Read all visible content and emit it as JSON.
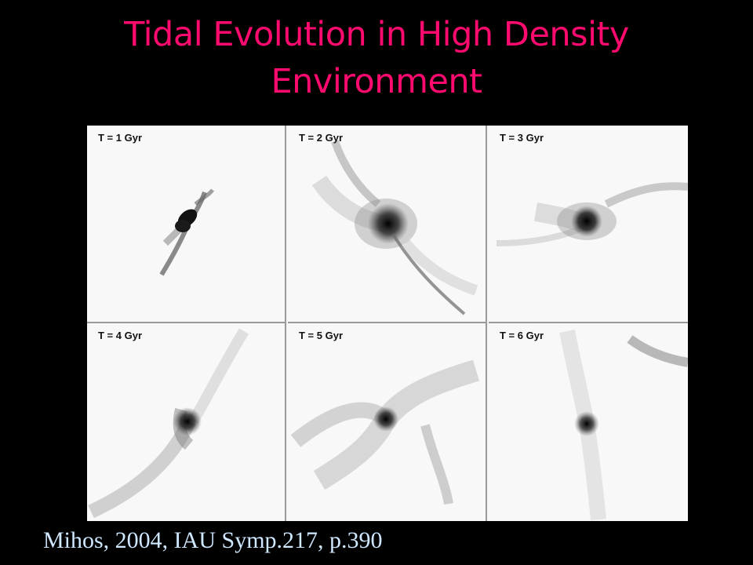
{
  "slide": {
    "title_line1": "Tidal Evolution in High Density",
    "title_line2": "Environment",
    "citation": "Mihos, 2004, IAU Symp.217, p.390",
    "title_color": "#ff0a6e",
    "citation_color": "#cfe7ff",
    "background": "#000000"
  },
  "figure": {
    "panels": [
      {
        "label": "T = 1 Gyr"
      },
      {
        "label": "T = 2 Gyr"
      },
      {
        "label": "T = 3 Gyr"
      },
      {
        "label": "T = 4 Gyr"
      },
      {
        "label": "T = 5 Gyr"
      },
      {
        "label": "T = 6 Gyr"
      }
    ]
  }
}
